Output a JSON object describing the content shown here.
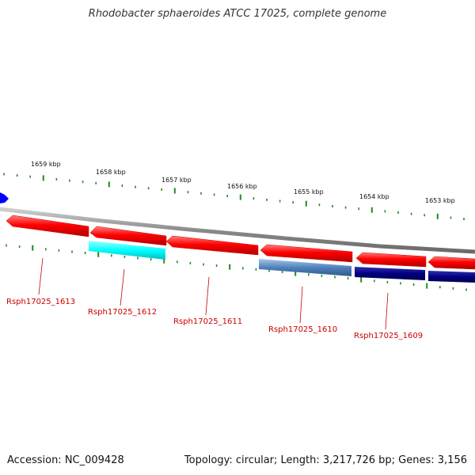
{
  "title": "Rhodobacter sphaeroides ATCC 17025, complete genome",
  "accession": "Accession: NC_009428",
  "summary": "Topology: circular; Length: 3,217,726 bp; Genes: 3,156",
  "scale_labels": [
    "1659 kbp",
    "1658 kbp",
    "1657 kbp",
    "1656 kbp",
    "1655 kbp",
    "1654 kbp",
    "1653 kbp"
  ],
  "genes": [
    {
      "label": "Rsph17025_1613",
      "strand": "reverse",
      "color": "#ff0000",
      "product_color": ""
    },
    {
      "label": "Rsph17025_1612",
      "strand": "reverse",
      "color": "#ff0000",
      "product_color": "#00ffff"
    },
    {
      "label": "Rsph17025_1611",
      "strand": "reverse",
      "color": "#ff0000",
      "product_color": ""
    },
    {
      "label": "Rsph17025_1610",
      "strand": "reverse",
      "color": "#ff0000",
      "product_color": "#4f81bd"
    },
    {
      "label": "Rsph17025_1609",
      "strand": "reverse",
      "color": "#ff0000",
      "product_color": "#000080"
    }
  ],
  "colors": {
    "backbone": "#888888",
    "tick": "#228b22",
    "gene": "#ff0000",
    "label": "#cc0000",
    "marker": "#0000ff"
  }
}
